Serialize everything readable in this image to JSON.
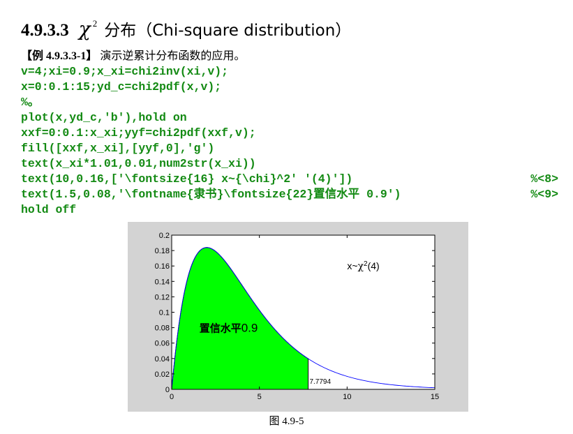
{
  "section": {
    "number": "4.9.3.3",
    "symbol": "χ",
    "superscript": "2",
    "title": "分布（Chi-square distribution）"
  },
  "example": {
    "tag": "【例 4.9.3.3-1】",
    "description": "演示逆累计分布函数的应用。"
  },
  "code_lines": [
    {
      "text": "v=4;xi=0.9;x_xi=chi2inv(xi,v);",
      "comment": ""
    },
    {
      "text": "x=0:0.1:15;yd_c=chi2pdf(x,v);",
      "comment": ""
    },
    {
      "text": "%。",
      "comment": ""
    },
    {
      "text": "plot(x,yd_c,'b'),hold on",
      "comment": ""
    },
    {
      "text": "xxf=0:0.1:x_xi;yyf=chi2pdf(xxf,v);",
      "comment": ""
    },
    {
      "text": "fill([xxf,x_xi],[yyf,0],'g')",
      "comment": ""
    },
    {
      "text": "text(x_xi*1.01,0.01,num2str(x_xi))",
      "comment": ""
    },
    {
      "text": "text(10,0.16,['\\fontsize{16} x~{\\chi}^2' '(4)'])",
      "comment": "%<8>"
    },
    {
      "text": "text(1.5,0.08,'\\fontname{隶书}\\fontsize{22}置信水平 0.9')",
      "comment": "%<9>"
    },
    {
      "text": "hold off",
      "comment": ""
    }
  ],
  "chart_data": {
    "type": "area",
    "title": "",
    "xlabel": "",
    "ylabel": "",
    "xlim": [
      0,
      15
    ],
    "ylim": [
      0,
      0.2
    ],
    "x_ticks": [
      0,
      5,
      10,
      15
    ],
    "x_tick_labels": [
      "0",
      "5",
      "10",
      "15"
    ],
    "y_ticks": [
      0,
      0.02,
      0.04,
      0.06,
      0.08,
      0.1,
      0.12,
      0.14,
      0.16,
      0.18,
      0.2
    ],
    "y_tick_labels": [
      "0",
      "0.02",
      "0.04",
      "0.06",
      "0.08",
      "0.1",
      "0.12",
      "0.14",
      "0.16",
      "0.18",
      "0.2"
    ],
    "grid": false,
    "series": [
      {
        "kind": "line",
        "color": "#0000ff",
        "x": [
          0,
          0.5,
          1,
          1.5,
          2,
          2.5,
          3,
          3.5,
          4,
          4.5,
          5,
          5.5,
          6,
          6.5,
          7,
          7.5,
          8,
          8.5,
          9,
          9.5,
          10,
          10.5,
          11,
          11.5,
          12,
          12.5,
          13,
          13.5,
          14,
          14.5,
          15
        ],
        "y": [
          0,
          0.0974,
          0.1516,
          0.1771,
          0.1839,
          0.1791,
          0.1673,
          0.1521,
          0.1353,
          0.1186,
          0.1026,
          0.088,
          0.0747,
          0.063,
          0.0529,
          0.0441,
          0.0366,
          0.0303,
          0.025,
          0.0205,
          0.0168,
          0.0137,
          0.0112,
          0.0091,
          0.0074,
          0.006,
          0.0049,
          0.004,
          0.0032,
          0.0026,
          0.0021
        ]
      },
      {
        "kind": "fill",
        "color": "#00ff00",
        "x_start": 0,
        "x_end": 7.7794
      }
    ],
    "annotations": [
      {
        "text": "7.7794",
        "x": 7.857,
        "y": 0.01
      },
      {
        "text_prefix": "x~",
        "text_symbol": "χ",
        "text_sup": "2",
        "text_suffix": "(4)",
        "x": 10,
        "y": 0.16
      },
      {
        "text_cn": "置信水平",
        "text_num": "0.9",
        "x": 1.5,
        "y": 0.08
      }
    ]
  },
  "figure_caption": "图 4.9-5"
}
